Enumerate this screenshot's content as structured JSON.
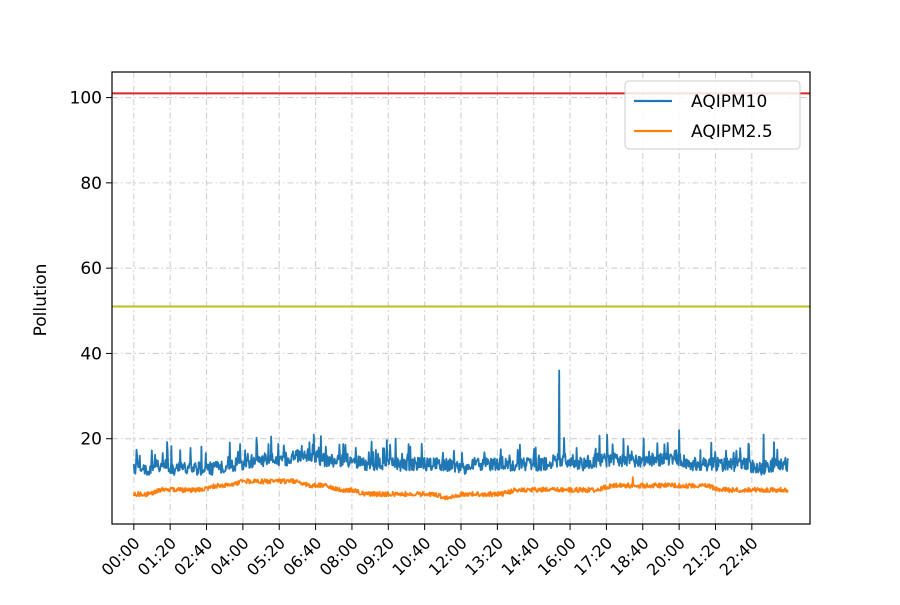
{
  "chart_data": {
    "type": "line",
    "xlabel": "",
    "ylabel": "Pollution",
    "ylim": [
      0,
      106
    ],
    "y_ticks": [
      20,
      40,
      60,
      80,
      100
    ],
    "x_ticks": [
      "00:00",
      "01:20",
      "02:40",
      "04:00",
      "05:20",
      "06:40",
      "08:00",
      "09:20",
      "10:40",
      "12:00",
      "13:20",
      "14:40",
      "16:00",
      "17:20",
      "18:40",
      "20:00",
      "21:20",
      "22:40"
    ],
    "x_range_hours": [
      -0.8,
      24.8
    ],
    "grid": true,
    "grid_style": "dash-dot",
    "legend_position": "top-right",
    "reference_lines": [
      {
        "value": 101,
        "color": "#d62728"
      },
      {
        "value": 51,
        "color": "#bcbd22"
      }
    ],
    "series": [
      {
        "name": "AQIPM10",
        "color": "#1f77b4",
        "x_hours": [
          0.0,
          0.5,
          1.0,
          1.5,
          2.0,
          2.5,
          3.0,
          3.5,
          4.0,
          4.5,
          5.0,
          5.5,
          6.0,
          6.5,
          7.0,
          7.5,
          8.0,
          8.5,
          9.0,
          9.5,
          10.0,
          10.5,
          11.0,
          11.5,
          12.0,
          12.5,
          13.0,
          13.5,
          14.0,
          14.5,
          15.0,
          15.5,
          16.0,
          16.5,
          17.0,
          17.5,
          18.0,
          18.5,
          19.0,
          19.5,
          20.0,
          20.5,
          21.0,
          21.5,
          22.0,
          22.5,
          23.0,
          23.5,
          24.0
        ],
        "values": [
          13,
          13,
          14,
          13,
          13,
          13,
          13,
          14,
          14,
          15,
          15,
          15,
          16,
          16,
          15,
          15,
          15,
          14,
          14,
          14,
          14,
          14,
          14,
          14,
          13,
          14,
          14,
          14,
          14,
          14,
          14,
          15,
          15,
          14,
          15,
          15,
          15,
          15,
          15,
          15,
          15,
          14,
          14,
          14,
          14,
          14,
          13,
          14,
          14
        ],
        "spikes": [
          {
            "hour": 15.6,
            "value": 36
          },
          {
            "hour": 6.6,
            "value": 21
          },
          {
            "hour": 20.0,
            "value": 22
          },
          {
            "hour": 23.1,
            "value": 21
          },
          {
            "hour": 9.6,
            "value": 20
          }
        ]
      },
      {
        "name": "AQIPM2.5",
        "color": "#ff7f0e",
        "x_hours": [
          0.0,
          0.5,
          1.0,
          1.5,
          2.0,
          2.5,
          3.0,
          3.5,
          4.0,
          4.5,
          5.0,
          5.5,
          6.0,
          6.5,
          7.0,
          7.5,
          8.0,
          8.5,
          9.0,
          9.5,
          10.0,
          10.5,
          11.0,
          11.5,
          12.0,
          12.5,
          13.0,
          13.5,
          14.0,
          14.5,
          15.0,
          15.5,
          16.0,
          16.5,
          17.0,
          17.5,
          18.0,
          18.5,
          19.0,
          19.5,
          20.0,
          20.5,
          21.0,
          21.5,
          22.0,
          22.5,
          23.0,
          23.5,
          24.0
        ],
        "values": [
          7,
          7,
          8,
          8,
          8,
          8,
          9,
          9,
          10,
          10,
          10,
          10,
          10,
          9,
          9,
          8,
          8,
          7,
          7,
          7,
          7,
          7,
          7,
          6,
          7,
          7,
          7,
          7,
          8,
          8,
          8,
          8,
          8,
          8,
          8,
          9,
          9,
          9,
          9,
          9,
          9,
          9,
          9,
          8,
          8,
          8,
          8,
          8,
          8
        ],
        "spikes": [
          {
            "hour": 18.3,
            "value": 11
          }
        ]
      }
    ]
  }
}
